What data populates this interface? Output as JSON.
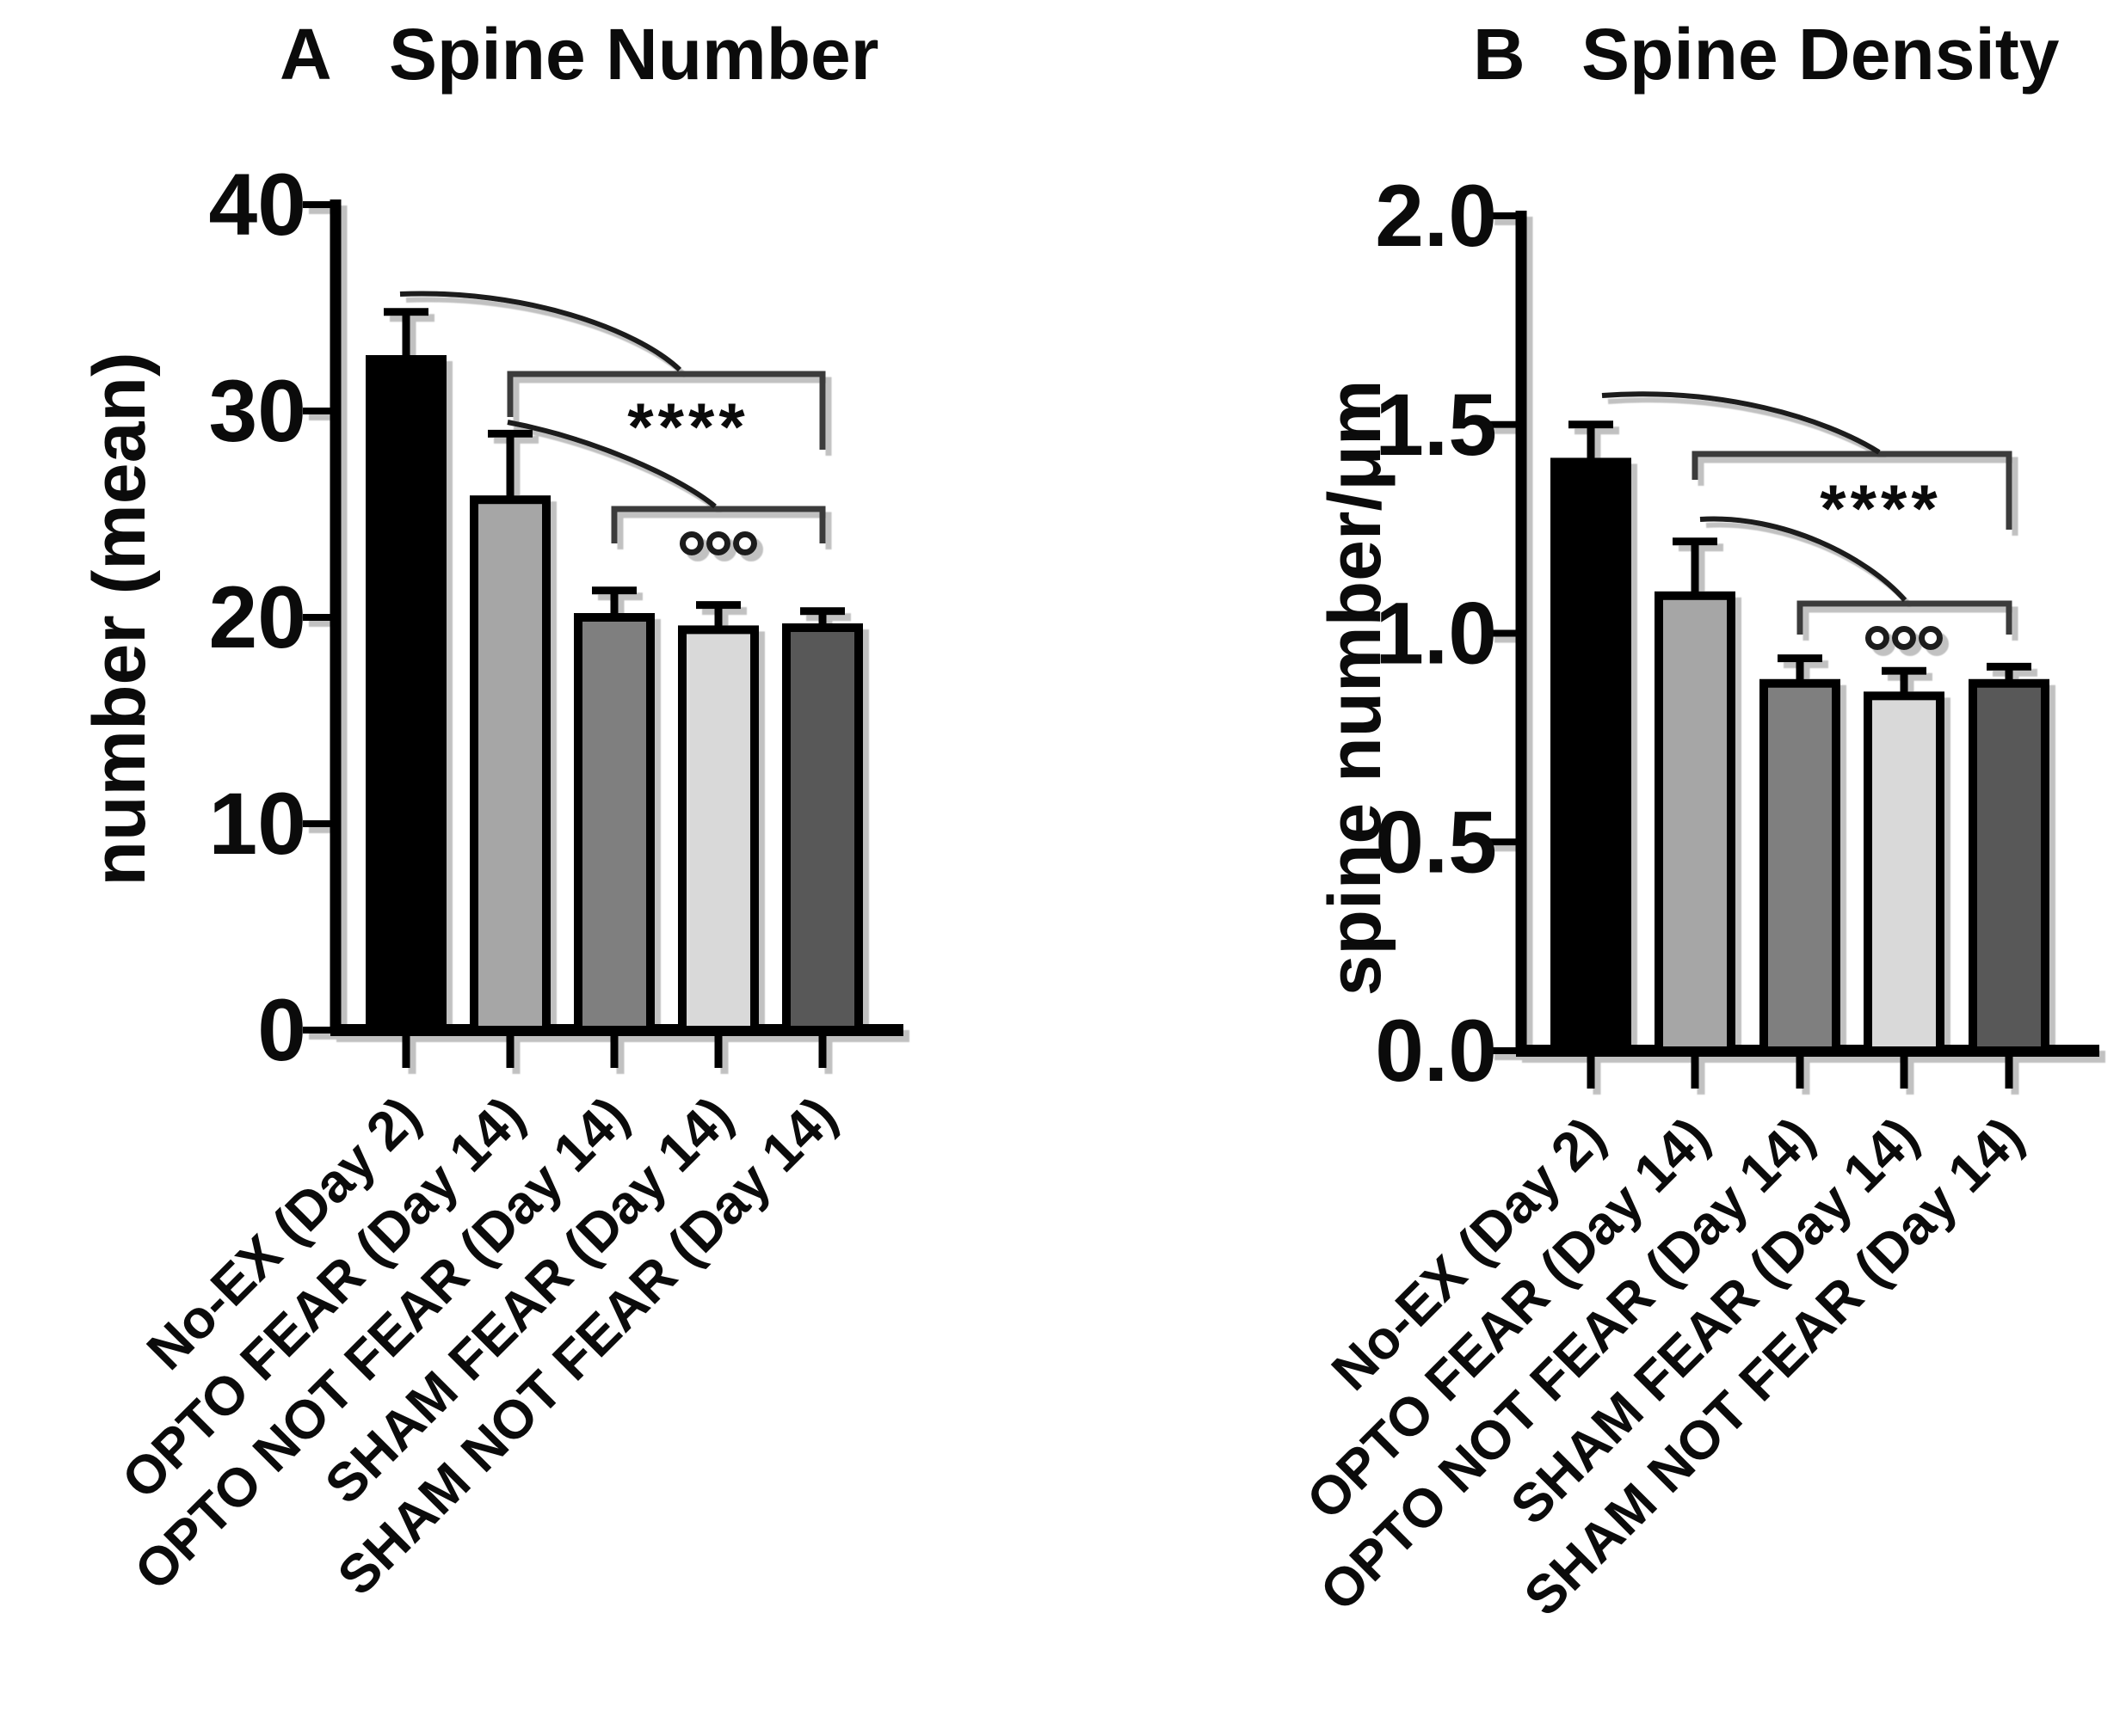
{
  "chart_data": [
    {
      "type": "bar",
      "panel_letter": "A",
      "title": "Spine Number",
      "xlabel": "",
      "ylabel": "number (mean)",
      "ylim": [
        0,
        40
      ],
      "yticks": [
        0,
        10,
        20,
        30,
        40
      ],
      "ytick_labels": [
        "0",
        "10",
        "20",
        "30",
        "40"
      ],
      "grid": false,
      "legend": null,
      "categories": [
        "No-EX (Day 2)",
        "OPTO FEAR (Day 14)",
        "OPTO NOT FEAR (Day 14)",
        "SHAM FEAR (Day 14)",
        "SHAM NOT FEAR (Day 14)"
      ],
      "values": [
        32.5,
        25.7,
        20.0,
        19.4,
        19.5
      ],
      "errors_upper": [
        2.3,
        3.2,
        1.3,
        1.2,
        0.8
      ],
      "bar_colors": [
        "#000000",
        "#a6a6a6",
        "#7f7f7f",
        "#d9d9d9",
        "#595959"
      ],
      "significance": [
        {
          "label": "****",
          "compared_from_category_index": 0,
          "bracket_span": [
            1,
            4
          ],
          "position": "upper"
        },
        {
          "label": "°°°",
          "compared_from_category_index": 1,
          "bracket_span": [
            2,
            4
          ],
          "position": "lower"
        }
      ]
    },
    {
      "type": "bar",
      "panel_letter": "B",
      "title": "Spine Density",
      "xlabel": "",
      "ylabel": "spine number/μm",
      "ylim": [
        0,
        2.0
      ],
      "yticks": [
        0,
        0.5,
        1.0,
        1.5,
        2.0
      ],
      "ytick_labels": [
        "0.0",
        "0.5",
        "1.0",
        "1.5",
        "2.0"
      ],
      "grid": false,
      "legend": null,
      "categories": [
        "No-EX (Day 2)",
        "OPTO FEAR (Day 14)",
        "OPTO NOT FEAR (Day 14)",
        "SHAM FEAR (Day 14)",
        "SHAM NOT FEAR (Day 14)"
      ],
      "values": [
        1.41,
        1.09,
        0.88,
        0.85,
        0.88
      ],
      "errors_upper": [
        0.09,
        0.13,
        0.06,
        0.06,
        0.04
      ],
      "bar_colors": [
        "#000000",
        "#a6a6a6",
        "#7f7f7f",
        "#d9d9d9",
        "#595959"
      ],
      "significance": [
        {
          "label": "****",
          "compared_from_category_index": 0,
          "bracket_span": [
            1,
            4
          ],
          "position": "upper"
        },
        {
          "label": "°°°",
          "compared_from_category_index": 1,
          "bracket_span": [
            2,
            4
          ],
          "position": "lower"
        }
      ]
    }
  ]
}
